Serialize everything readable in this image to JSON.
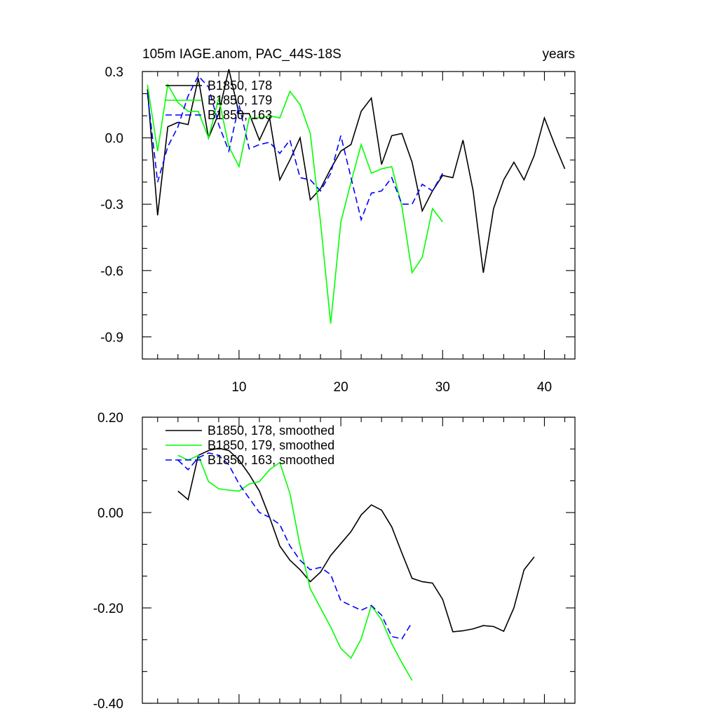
{
  "chart_data": [
    {
      "type": "line",
      "title": "105m IAGE.anom, PAC_44S-18S",
      "units": "years",
      "ylim": [
        -1.0,
        0.3
      ],
      "xlim": [
        0.5,
        43.0
      ],
      "yticks": [
        0.3,
        0.0,
        -0.3,
        -0.6,
        -0.9
      ],
      "ytick_labels": [
        "0.3",
        "0.0",
        "-0.3",
        "-0.6",
        "-0.9"
      ],
      "xticks": [
        10,
        20,
        30,
        40
      ],
      "xtick_labels": [
        "10",
        "20",
        "30",
        "40"
      ],
      "legend": "top-left",
      "series": [
        {
          "name": "B1850, 178",
          "color": "#000000",
          "dash": "solid",
          "x": [
            1,
            2,
            3,
            4,
            5,
            6,
            7,
            8,
            9,
            10,
            11,
            12,
            13,
            14,
            15,
            16,
            17,
            18,
            19,
            20,
            21,
            22,
            23,
            24,
            25,
            26,
            27,
            28,
            29,
            30,
            31,
            32,
            33,
            34,
            35,
            36,
            37,
            38,
            39,
            40,
            41,
            42
          ],
          "y": [
            0.22,
            -0.35,
            0.05,
            0.07,
            0.06,
            0.27,
            0.0,
            0.11,
            0.31,
            0.11,
            0.11,
            -0.01,
            0.09,
            -0.19,
            -0.1,
            0.0,
            -0.28,
            -0.23,
            -0.14,
            -0.06,
            -0.03,
            0.12,
            0.18,
            -0.12,
            0.01,
            0.02,
            -0.11,
            -0.33,
            -0.24,
            -0.17,
            -0.18,
            -0.01,
            -0.24,
            -0.61,
            -0.32,
            -0.19,
            -0.11,
            -0.19,
            -0.08,
            0.09,
            -0.03,
            -0.14
          ]
        },
        {
          "name": "B1850, 179",
          "color": "#00ff00",
          "dash": "solid",
          "x": [
            1,
            2,
            3,
            4,
            5,
            6,
            7,
            8,
            9,
            10,
            11,
            12,
            13,
            14,
            15,
            16,
            17,
            18,
            19,
            20,
            21,
            22,
            23,
            24,
            25,
            26,
            27,
            28,
            29,
            30
          ],
          "y": [
            0.24,
            -0.06,
            0.24,
            0.16,
            0.12,
            0.12,
            0.0,
            0.18,
            -0.04,
            -0.13,
            0.09,
            0.09,
            0.1,
            0.09,
            0.21,
            0.15,
            0.02,
            -0.38,
            -0.84,
            -0.38,
            -0.2,
            -0.03,
            -0.16,
            -0.14,
            -0.13,
            -0.31,
            -0.61,
            -0.54,
            -0.32,
            -0.38
          ]
        },
        {
          "name": "B1850, 163",
          "color": "#0000ff",
          "dash": "dashed",
          "x": [
            1,
            2,
            3,
            4,
            5,
            6,
            7,
            8,
            9,
            10,
            11,
            12,
            13,
            14,
            15,
            16,
            17,
            18,
            19,
            20,
            21,
            22,
            23,
            24,
            25,
            26,
            27,
            28,
            29,
            30
          ],
          "y": [
            0.2,
            -0.2,
            -0.04,
            0.05,
            0.19,
            0.28,
            0.23,
            0.06,
            -0.06,
            0.15,
            -0.05,
            -0.03,
            -0.02,
            -0.07,
            -0.01,
            -0.18,
            -0.19,
            -0.24,
            -0.16,
            0.01,
            -0.18,
            -0.37,
            -0.25,
            -0.24,
            -0.18,
            -0.3,
            -0.3,
            -0.21,
            -0.24,
            -0.16
          ]
        }
      ]
    },
    {
      "type": "line",
      "ylim": [
        -0.4,
        0.2
      ],
      "xlim": [
        0.5,
        43.0
      ],
      "yticks": [
        0.2,
        0.0,
        -0.2,
        -0.4
      ],
      "ytick_labels": [
        "0.20",
        "0.00",
        "-0.20",
        "-0.40"
      ],
      "xticks": [
        10,
        20,
        30,
        40
      ],
      "legend": "top-left",
      "series": [
        {
          "name": "B1850, 178, smoothed",
          "color": "#000000",
          "dash": "solid",
          "x": [
            4,
            5,
            6,
            7,
            8,
            9,
            10,
            11,
            12,
            13,
            14,
            15,
            16,
            17,
            18,
            19,
            20,
            21,
            22,
            23,
            24,
            25,
            26,
            27,
            28,
            29,
            30,
            31,
            32,
            33,
            34,
            35,
            36,
            37,
            38,
            39
          ],
          "y": [
            0.045,
            0.027,
            0.12,
            0.13,
            0.135,
            0.13,
            0.11,
            0.08,
            0.045,
            -0.01,
            -0.07,
            -0.1,
            -0.12,
            -0.145,
            -0.125,
            -0.09,
            -0.065,
            -0.04,
            -0.005,
            0.016,
            0.005,
            -0.03,
            -0.085,
            -0.138,
            -0.145,
            -0.148,
            -0.182,
            -0.25,
            -0.248,
            -0.244,
            -0.237,
            -0.239,
            -0.249,
            -0.2,
            -0.12,
            -0.093
          ]
        },
        {
          "name": "B1850, 179, smoothed",
          "color": "#00ff00",
          "dash": "solid",
          "x": [
            4,
            5,
            6,
            7,
            8,
            9,
            10,
            11,
            12,
            13,
            14,
            15,
            16,
            17,
            18,
            19,
            20,
            21,
            22,
            23,
            24,
            25,
            26,
            27
          ],
          "y": [
            0.12,
            0.11,
            0.12,
            0.065,
            0.05,
            0.047,
            0.045,
            0.06,
            0.065,
            0.09,
            0.105,
            0.04,
            -0.07,
            -0.16,
            -0.2,
            -0.24,
            -0.285,
            -0.305,
            -0.265,
            -0.195,
            -0.225,
            -0.275,
            -0.315,
            -0.352
          ]
        },
        {
          "name": "B1850, 163, smoothed",
          "color": "#0000ff",
          "dash": "dashed",
          "x": [
            4,
            5,
            6,
            7,
            8,
            9,
            10,
            11,
            12,
            13,
            14,
            15,
            16,
            17,
            18,
            19,
            20,
            21,
            22,
            23,
            24,
            25,
            26,
            27
          ],
          "y": [
            0.11,
            0.09,
            0.115,
            0.125,
            0.12,
            0.1,
            0.06,
            0.03,
            0.0,
            -0.01,
            -0.025,
            -0.07,
            -0.1,
            -0.12,
            -0.115,
            -0.13,
            -0.185,
            -0.195,
            -0.205,
            -0.195,
            -0.215,
            -0.26,
            -0.265,
            -0.23
          ]
        }
      ]
    }
  ]
}
